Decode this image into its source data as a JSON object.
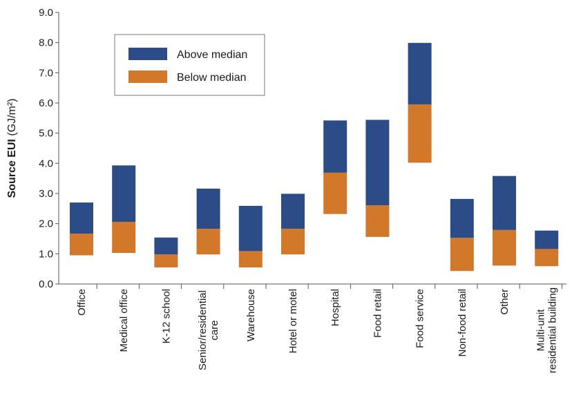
{
  "chart_data": {
    "type": "bar",
    "subtype": "floating-stacked",
    "ylabel_bold": "Source EUI",
    "ylabel_unit": "(GJ/m²)",
    "ylim": [
      0,
      9
    ],
    "yticks": [
      "0.0",
      "1.0",
      "2.0",
      "3.0",
      "4.0",
      "5.0",
      "6.0",
      "7.0",
      "8.0",
      "9.0"
    ],
    "grid": false,
    "legend_position": "top-left",
    "categories": [
      [
        "Office"
      ],
      [
        "Medical office"
      ],
      [
        "K-12 school"
      ],
      [
        "Senior/residential",
        "care"
      ],
      [
        "Warehouse"
      ],
      [
        "Hotel or motel"
      ],
      [
        "Hospital"
      ],
      [
        "Food retail"
      ],
      [
        "Food service"
      ],
      [
        "Non-food retail"
      ],
      [
        "Other"
      ],
      [
        "Multi-unit",
        "residential building"
      ]
    ],
    "series": [
      {
        "name": "Below median",
        "color": "#d2782a",
        "ranges": [
          [
            0.95,
            1.67
          ],
          [
            1.03,
            2.06
          ],
          [
            0.55,
            0.98
          ],
          [
            0.98,
            1.83
          ],
          [
            0.55,
            1.09
          ],
          [
            0.98,
            1.83
          ],
          [
            2.32,
            3.69
          ],
          [
            1.56,
            2.61
          ],
          [
            4.02,
            5.95
          ],
          [
            0.43,
            1.53
          ],
          [
            0.61,
            1.79
          ],
          [
            0.59,
            1.16
          ]
        ]
      },
      {
        "name": "Above median",
        "color": "#2b4c86",
        "ranges": [
          [
            1.67,
            2.7
          ],
          [
            2.06,
            3.93
          ],
          [
            0.98,
            1.54
          ],
          [
            1.83,
            3.16
          ],
          [
            1.09,
            2.59
          ],
          [
            1.83,
            2.99
          ],
          [
            3.69,
            5.42
          ],
          [
            2.61,
            5.44
          ],
          [
            5.95,
            7.99
          ],
          [
            1.53,
            2.82
          ],
          [
            1.79,
            3.58
          ],
          [
            1.16,
            1.77
          ]
        ]
      }
    ],
    "legend_order": [
      "Above median",
      "Below median"
    ]
  }
}
